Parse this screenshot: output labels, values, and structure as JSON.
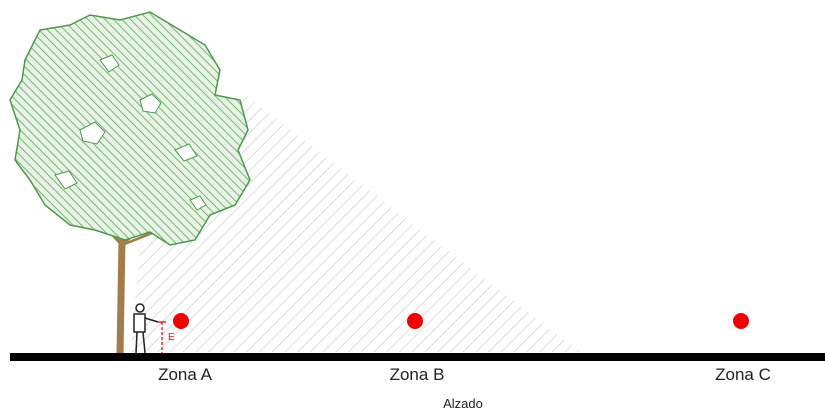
{
  "diagram": {
    "marker_label": "E",
    "zones": [
      {
        "label": "Zona A"
      },
      {
        "label": "Zona B"
      },
      {
        "label": "Zona C"
      }
    ],
    "caption": "Alzado"
  }
}
